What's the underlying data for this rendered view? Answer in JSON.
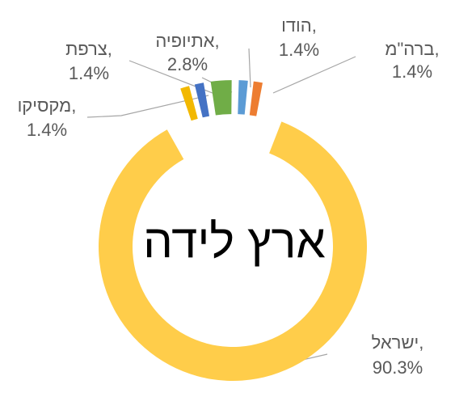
{
  "chart_data": {
    "type": "donut",
    "title": "ארץ לידה",
    "categories": [
      "מקסיקו,",
      "צרפת,",
      "אתיופיה,",
      "הודו,",
      "ברה\"מ,",
      "ישראל,"
    ],
    "values": [
      1.4,
      1.4,
      2.8,
      1.4,
      1.4,
      90.3
    ],
    "value_labels": [
      "1.4%",
      "1.4%",
      "2.8%",
      "1.4%",
      "1.4%",
      "90.3%"
    ],
    "colors": [
      "#f2b800",
      "#4472c4",
      "#70ad47",
      "#5b9bd5",
      "#ed7d31",
      "#ffcd4a"
    ]
  }
}
